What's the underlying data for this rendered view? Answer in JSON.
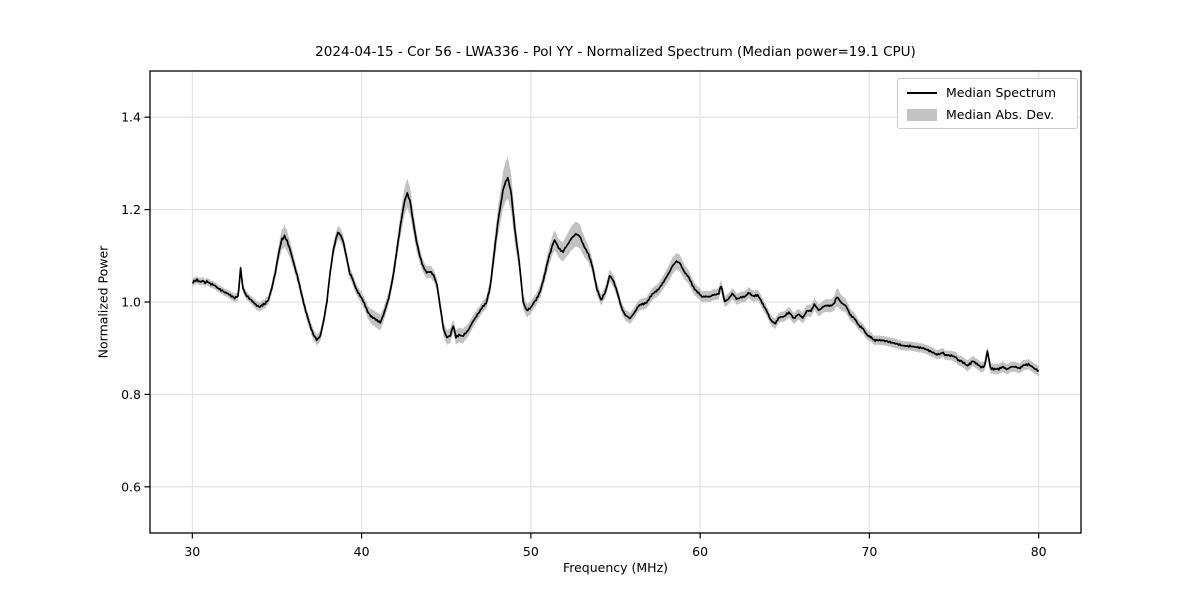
{
  "colors": {
    "line": "#000000",
    "band": "#c2c2c2",
    "grid": "#dedede",
    "spine": "#000000",
    "background": "#ffffff"
  },
  "chart_data": {
    "type": "line",
    "title": "2024-04-15 - Cor 56 - LWA336 - Pol YY - Normalized Spectrum (Median power=19.1 CPU)",
    "xlabel": "Frequency (MHz)",
    "ylabel": "Normalized Power",
    "xlim": [
      27.5,
      82.5
    ],
    "ylim": [
      0.5,
      1.5
    ],
    "x_ticks": [
      30,
      40,
      50,
      60,
      70,
      80
    ],
    "y_ticks": [
      0.6,
      0.8,
      1.0,
      1.2,
      1.4
    ],
    "grid": true,
    "legend_position": "upper right",
    "series": [
      {
        "name": "Median Spectrum",
        "style": "line",
        "color": "#000000"
      },
      {
        "name": "Median Abs. Dev.",
        "style": "band",
        "color": "#c2c2c2"
      }
    ],
    "noise_amplitude": 0.0035,
    "points_format": [
      "frequency_mhz",
      "median",
      "mad"
    ],
    "points": [
      [
        30.0,
        1.042,
        0.008
      ],
      [
        30.15,
        1.046,
        0.008
      ],
      [
        30.3,
        1.048,
        0.008
      ],
      [
        30.45,
        1.043,
        0.008
      ],
      [
        30.6,
        1.046,
        0.008
      ],
      [
        30.75,
        1.042,
        0.008
      ],
      [
        30.9,
        1.044,
        0.008
      ],
      [
        31.1,
        1.04,
        0.008
      ],
      [
        31.3,
        1.038,
        0.008
      ],
      [
        31.5,
        1.032,
        0.008
      ],
      [
        31.7,
        1.027,
        0.008
      ],
      [
        31.9,
        1.022,
        0.008
      ],
      [
        32.1,
        1.018,
        0.008
      ],
      [
        32.3,
        1.012,
        0.009
      ],
      [
        32.5,
        1.007,
        0.009
      ],
      [
        32.7,
        1.011,
        0.009
      ],
      [
        32.85,
        1.072,
        0.01
      ],
      [
        33.0,
        1.028,
        0.009
      ],
      [
        33.15,
        1.018,
        0.009
      ],
      [
        33.35,
        1.01,
        0.009
      ],
      [
        33.55,
        1.003,
        0.009
      ],
      [
        33.75,
        0.995,
        0.01
      ],
      [
        33.95,
        0.989,
        0.01
      ],
      [
        34.15,
        0.992,
        0.01
      ],
      [
        34.3,
        0.998,
        0.01
      ],
      [
        34.5,
        1.005,
        0.01
      ],
      [
        34.7,
        1.03,
        0.012
      ],
      [
        34.9,
        1.062,
        0.014
      ],
      [
        35.1,
        1.103,
        0.018
      ],
      [
        35.3,
        1.136,
        0.022
      ],
      [
        35.45,
        1.142,
        0.024
      ],
      [
        35.6,
        1.133,
        0.022
      ],
      [
        35.8,
        1.11,
        0.018
      ],
      [
        36.0,
        1.082,
        0.015
      ],
      [
        36.2,
        1.055,
        0.013
      ],
      [
        36.45,
        1.018,
        0.012
      ],
      [
        36.7,
        0.982,
        0.012
      ],
      [
        36.95,
        0.948,
        0.012
      ],
      [
        37.15,
        0.928,
        0.012
      ],
      [
        37.35,
        0.917,
        0.012
      ],
      [
        37.55,
        0.925,
        0.012
      ],
      [
        37.75,
        0.958,
        0.012
      ],
      [
        37.95,
        1.002,
        0.013
      ],
      [
        38.15,
        1.068,
        0.014
      ],
      [
        38.35,
        1.118,
        0.015
      ],
      [
        38.55,
        1.146,
        0.015
      ],
      [
        38.7,
        1.15,
        0.014
      ],
      [
        38.9,
        1.135,
        0.014
      ],
      [
        39.1,
        1.1,
        0.013
      ],
      [
        39.3,
        1.063,
        0.012
      ],
      [
        39.6,
        1.036,
        0.012
      ],
      [
        39.85,
        1.018,
        0.012
      ],
      [
        40.1,
        1.0,
        0.013
      ],
      [
        40.35,
        0.981,
        0.014
      ],
      [
        40.6,
        0.968,
        0.016
      ],
      [
        40.85,
        0.96,
        0.017
      ],
      [
        41.1,
        0.957,
        0.017
      ],
      [
        41.35,
        0.978,
        0.015
      ],
      [
        41.6,
        1.006,
        0.014
      ],
      [
        41.85,
        1.055,
        0.016
      ],
      [
        42.1,
        1.115,
        0.02
      ],
      [
        42.35,
        1.178,
        0.026
      ],
      [
        42.55,
        1.22,
        0.03
      ],
      [
        42.7,
        1.235,
        0.032
      ],
      [
        42.85,
        1.22,
        0.03
      ],
      [
        43.05,
        1.172,
        0.024
      ],
      [
        43.25,
        1.128,
        0.02
      ],
      [
        43.45,
        1.097,
        0.016
      ],
      [
        43.65,
        1.075,
        0.013
      ],
      [
        43.85,
        1.064,
        0.013
      ],
      [
        44.05,
        1.067,
        0.013
      ],
      [
        44.25,
        1.06,
        0.013
      ],
      [
        44.45,
        1.04,
        0.013
      ],
      [
        44.65,
        0.99,
        0.014
      ],
      [
        44.85,
        0.94,
        0.015
      ],
      [
        45.05,
        0.923,
        0.016
      ],
      [
        45.25,
        0.927,
        0.016
      ],
      [
        45.42,
        0.95,
        0.014
      ],
      [
        45.58,
        0.922,
        0.016
      ],
      [
        45.75,
        0.931,
        0.016
      ],
      [
        45.95,
        0.927,
        0.016
      ],
      [
        46.15,
        0.933,
        0.015
      ],
      [
        46.35,
        0.941,
        0.014
      ],
      [
        46.6,
        0.958,
        0.013
      ],
      [
        46.85,
        0.975,
        0.012
      ],
      [
        47.1,
        0.986,
        0.012
      ],
      [
        47.35,
        0.996,
        0.013
      ],
      [
        47.6,
        1.035,
        0.016
      ],
      [
        47.85,
        1.11,
        0.025
      ],
      [
        48.1,
        1.185,
        0.032
      ],
      [
        48.35,
        1.242,
        0.04
      ],
      [
        48.63,
        1.271,
        0.045
      ],
      [
        48.85,
        1.232,
        0.04
      ],
      [
        49.05,
        1.16,
        0.03
      ],
      [
        49.3,
        1.09,
        0.02
      ],
      [
        49.55,
        0.998,
        0.015
      ],
      [
        49.75,
        0.981,
        0.015
      ],
      [
        50.0,
        0.99,
        0.013
      ],
      [
        50.3,
        1.003,
        0.013
      ],
      [
        50.55,
        1.025,
        0.014
      ],
      [
        50.8,
        1.055,
        0.016
      ],
      [
        51.05,
        1.095,
        0.019
      ],
      [
        51.3,
        1.128,
        0.021
      ],
      [
        51.45,
        1.132,
        0.021
      ],
      [
        51.65,
        1.118,
        0.02
      ],
      [
        51.9,
        1.108,
        0.021
      ],
      [
        52.15,
        1.122,
        0.024
      ],
      [
        52.4,
        1.14,
        0.026
      ],
      [
        52.65,
        1.146,
        0.027
      ],
      [
        52.9,
        1.141,
        0.026
      ],
      [
        53.15,
        1.122,
        0.022
      ],
      [
        53.4,
        1.102,
        0.018
      ],
      [
        53.65,
        1.075,
        0.015
      ],
      [
        53.9,
        1.03,
        0.013
      ],
      [
        54.15,
        1.002,
        0.012
      ],
      [
        54.4,
        1.022,
        0.012
      ],
      [
        54.65,
        1.058,
        0.013
      ],
      [
        54.85,
        1.048,
        0.013
      ],
      [
        55.1,
        1.02,
        0.012
      ],
      [
        55.35,
        0.99,
        0.012
      ],
      [
        55.6,
        0.97,
        0.012
      ],
      [
        55.85,
        0.963,
        0.012
      ],
      [
        56.1,
        0.978,
        0.012
      ],
      [
        56.35,
        0.99,
        0.012
      ],
      [
        56.6,
        0.995,
        0.012
      ],
      [
        56.85,
        1.001,
        0.012
      ],
      [
        57.1,
        1.012,
        0.013
      ],
      [
        57.35,
        1.022,
        0.013
      ],
      [
        57.6,
        1.032,
        0.014
      ],
      [
        57.85,
        1.042,
        0.015
      ],
      [
        58.1,
        1.06,
        0.016
      ],
      [
        58.35,
        1.078,
        0.018
      ],
      [
        58.6,
        1.086,
        0.018
      ],
      [
        58.8,
        1.083,
        0.018
      ],
      [
        59.05,
        1.068,
        0.016
      ],
      [
        59.35,
        1.05,
        0.015
      ],
      [
        59.6,
        1.034,
        0.014
      ],
      [
        59.85,
        1.021,
        0.013
      ],
      [
        60.1,
        1.01,
        0.012
      ],
      [
        60.35,
        1.014,
        0.012
      ],
      [
        60.6,
        1.011,
        0.012
      ],
      [
        60.85,
        1.015,
        0.012
      ],
      [
        61.1,
        1.02,
        0.012
      ],
      [
        61.25,
        1.035,
        0.013
      ],
      [
        61.45,
        1.002,
        0.012
      ],
      [
        61.65,
        1.008,
        0.012
      ],
      [
        61.9,
        1.017,
        0.012
      ],
      [
        62.15,
        1.006,
        0.012
      ],
      [
        62.4,
        1.012,
        0.012
      ],
      [
        62.65,
        1.01,
        0.012
      ],
      [
        62.9,
        1.02,
        0.012
      ],
      [
        63.15,
        1.014,
        0.012
      ],
      [
        63.4,
        1.013,
        0.012
      ],
      [
        63.65,
        1.0,
        0.012
      ],
      [
        63.9,
        0.984,
        0.011
      ],
      [
        64.15,
        0.96,
        0.011
      ],
      [
        64.45,
        0.955,
        0.011
      ],
      [
        64.75,
        0.968,
        0.011
      ],
      [
        65.0,
        0.971,
        0.011
      ],
      [
        65.3,
        0.976,
        0.012
      ],
      [
        65.55,
        0.966,
        0.012
      ],
      [
        65.8,
        0.972,
        0.012
      ],
      [
        66.05,
        0.966,
        0.012
      ],
      [
        66.3,
        0.982,
        0.013
      ],
      [
        66.55,
        0.979,
        0.013
      ],
      [
        66.75,
        0.993,
        0.013
      ],
      [
        67.0,
        0.984,
        0.013
      ],
      [
        67.25,
        0.989,
        0.013
      ],
      [
        67.5,
        0.991,
        0.014
      ],
      [
        67.75,
        0.994,
        0.014
      ],
      [
        67.95,
        1.0,
        0.016
      ],
      [
        68.1,
        1.012,
        0.02
      ],
      [
        68.3,
        1.002,
        0.017
      ],
      [
        68.55,
        0.993,
        0.015
      ],
      [
        68.85,
        0.975,
        0.013
      ],
      [
        69.15,
        0.961,
        0.012
      ],
      [
        69.45,
        0.948,
        0.011
      ],
      [
        69.75,
        0.935,
        0.011
      ],
      [
        70.05,
        0.923,
        0.01
      ],
      [
        70.4,
        0.917,
        0.01
      ],
      [
        70.8,
        0.915,
        0.01
      ],
      [
        71.2,
        0.912,
        0.01
      ],
      [
        71.6,
        0.91,
        0.01
      ],
      [
        72.0,
        0.907,
        0.01
      ],
      [
        72.4,
        0.906,
        0.01
      ],
      [
        72.8,
        0.902,
        0.01
      ],
      [
        73.2,
        0.898,
        0.01
      ],
      [
        73.6,
        0.892,
        0.01
      ],
      [
        74.0,
        0.886,
        0.01
      ],
      [
        74.35,
        0.889,
        0.01
      ],
      [
        74.7,
        0.883,
        0.01
      ],
      [
        75.05,
        0.88,
        0.011
      ],
      [
        75.4,
        0.872,
        0.011
      ],
      [
        75.8,
        0.86,
        0.012
      ],
      [
        76.1,
        0.874,
        0.011
      ],
      [
        76.35,
        0.864,
        0.011
      ],
      [
        76.6,
        0.859,
        0.011
      ],
      [
        76.8,
        0.863,
        0.011
      ],
      [
        76.97,
        0.892,
        0.01
      ],
      [
        77.15,
        0.858,
        0.011
      ],
      [
        77.4,
        0.856,
        0.011
      ],
      [
        77.65,
        0.853,
        0.011
      ],
      [
        77.9,
        0.861,
        0.011
      ],
      [
        78.15,
        0.855,
        0.011
      ],
      [
        78.4,
        0.858,
        0.011
      ],
      [
        78.65,
        0.861,
        0.011
      ],
      [
        78.9,
        0.857,
        0.011
      ],
      [
        79.15,
        0.862,
        0.011
      ],
      [
        79.4,
        0.867,
        0.011
      ],
      [
        79.6,
        0.862,
        0.011
      ],
      [
        79.8,
        0.856,
        0.011
      ],
      [
        80.0,
        0.852,
        0.011
      ]
    ]
  }
}
